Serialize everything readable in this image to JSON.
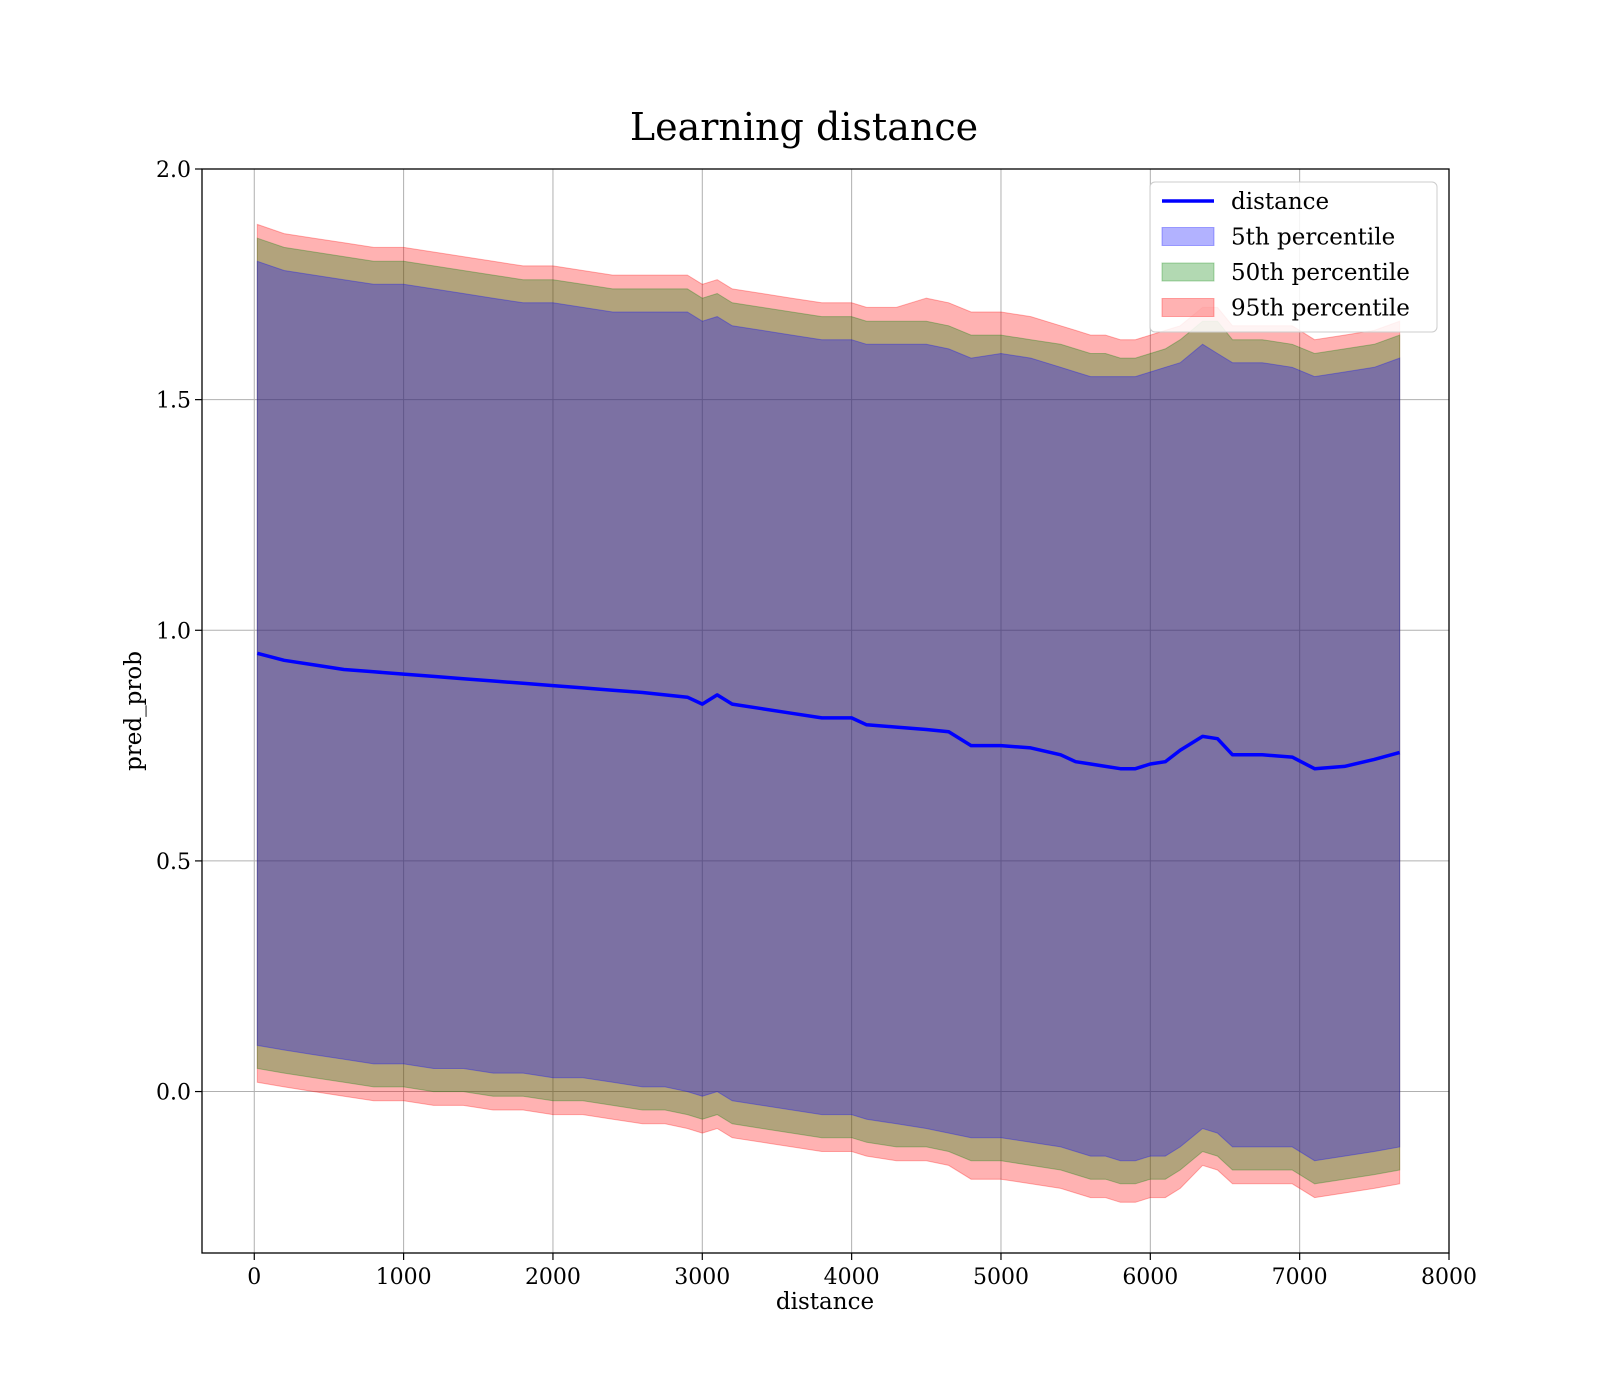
{
  "chart_data": {
    "type": "line",
    "title": "Learning distance",
    "xlabel": "distance",
    "ylabel": "pred_prob",
    "xlim": [
      -350,
      8000
    ],
    "ylim": [
      -0.35,
      2.0
    ],
    "xticks": [
      0,
      1000,
      2000,
      3000,
      4000,
      5000,
      6000,
      7000,
      8000
    ],
    "xtick_labels": [
      "0",
      "1000",
      "2000",
      "3000",
      "4000",
      "5000",
      "6000",
      "7000",
      "8000"
    ],
    "yticks": [
      0.0,
      0.5,
      1.0,
      1.5,
      2.0
    ],
    "ytick_labels": [
      "0.0",
      "0.5",
      "1.0",
      "1.5",
      "2.0"
    ],
    "grid": true,
    "legend_position": "top-right",
    "legend": [
      {
        "label": "distance",
        "kind": "line",
        "color": "#0000ff"
      },
      {
        "label": "5th percentile",
        "kind": "patch",
        "color": "#0000ff"
      },
      {
        "label": "50th percentile",
        "kind": "patch",
        "color": "#008000"
      },
      {
        "label": "95th percentile",
        "kind": "patch",
        "color": "#ff0000"
      }
    ],
    "x": [
      20,
      200,
      400,
      600,
      800,
      1000,
      1200,
      1400,
      1600,
      1800,
      2000,
      2200,
      2400,
      2600,
      2750,
      2900,
      3000,
      3100,
      3200,
      3400,
      3600,
      3800,
      4000,
      4100,
      4300,
      4500,
      4650,
      4800,
      5000,
      5200,
      5400,
      5500,
      5600,
      5700,
      5800,
      5900,
      6000,
      6100,
      6200,
      6350,
      6450,
      6550,
      6750,
      6950,
      7100,
      7300,
      7500,
      7670
    ],
    "series": [
      {
        "name": "distance",
        "color": "#0000ff",
        "values": [
          0.95,
          0.935,
          0.925,
          0.915,
          0.91,
          0.905,
          0.9,
          0.895,
          0.89,
          0.885,
          0.88,
          0.875,
          0.87,
          0.865,
          0.86,
          0.855,
          0.84,
          0.86,
          0.84,
          0.83,
          0.82,
          0.81,
          0.81,
          0.795,
          0.79,
          0.785,
          0.78,
          0.75,
          0.75,
          0.745,
          0.73,
          0.715,
          0.71,
          0.705,
          0.7,
          0.7,
          0.71,
          0.715,
          0.74,
          0.77,
          0.765,
          0.73,
          0.73,
          0.725,
          0.7,
          0.705,
          0.72,
          0.735
        ]
      }
    ],
    "bands": [
      {
        "name": "95th percentile",
        "color": "#ff0000",
        "upper": [
          1.88,
          1.86,
          1.85,
          1.84,
          1.83,
          1.83,
          1.82,
          1.81,
          1.8,
          1.79,
          1.79,
          1.78,
          1.77,
          1.77,
          1.77,
          1.77,
          1.75,
          1.76,
          1.74,
          1.73,
          1.72,
          1.71,
          1.71,
          1.7,
          1.7,
          1.72,
          1.71,
          1.69,
          1.69,
          1.68,
          1.66,
          1.65,
          1.64,
          1.64,
          1.63,
          1.63,
          1.64,
          1.65,
          1.66,
          1.7,
          1.7,
          1.66,
          1.66,
          1.66,
          1.63,
          1.64,
          1.65,
          1.67
        ],
        "lower": [
          0.02,
          0.01,
          0.0,
          -0.01,
          -0.02,
          -0.02,
          -0.03,
          -0.03,
          -0.04,
          -0.04,
          -0.05,
          -0.05,
          -0.06,
          -0.07,
          -0.07,
          -0.08,
          -0.09,
          -0.08,
          -0.1,
          -0.11,
          -0.12,
          -0.13,
          -0.13,
          -0.14,
          -0.15,
          -0.15,
          -0.16,
          -0.19,
          -0.19,
          -0.2,
          -0.21,
          -0.22,
          -0.23,
          -0.23,
          -0.24,
          -0.24,
          -0.23,
          -0.23,
          -0.21,
          -0.16,
          -0.17,
          -0.2,
          -0.2,
          -0.2,
          -0.23,
          -0.22,
          -0.21,
          -0.2
        ]
      },
      {
        "name": "50th percentile",
        "color": "#008000",
        "upper": [
          1.85,
          1.83,
          1.82,
          1.81,
          1.8,
          1.8,
          1.79,
          1.78,
          1.77,
          1.76,
          1.76,
          1.75,
          1.74,
          1.74,
          1.74,
          1.74,
          1.72,
          1.73,
          1.71,
          1.7,
          1.69,
          1.68,
          1.68,
          1.67,
          1.67,
          1.67,
          1.66,
          1.64,
          1.64,
          1.63,
          1.62,
          1.61,
          1.6,
          1.6,
          1.59,
          1.59,
          1.6,
          1.61,
          1.63,
          1.67,
          1.67,
          1.63,
          1.63,
          1.62,
          1.6,
          1.61,
          1.62,
          1.64
        ],
        "lower": [
          0.05,
          0.04,
          0.03,
          0.02,
          0.01,
          0.01,
          0.0,
          0.0,
          -0.01,
          -0.01,
          -0.02,
          -0.02,
          -0.03,
          -0.04,
          -0.04,
          -0.05,
          -0.06,
          -0.05,
          -0.07,
          -0.08,
          -0.09,
          -0.1,
          -0.1,
          -0.11,
          -0.12,
          -0.12,
          -0.13,
          -0.15,
          -0.15,
          -0.16,
          -0.17,
          -0.18,
          -0.19,
          -0.19,
          -0.2,
          -0.2,
          -0.19,
          -0.19,
          -0.17,
          -0.13,
          -0.14,
          -0.17,
          -0.17,
          -0.17,
          -0.2,
          -0.19,
          -0.18,
          -0.17
        ]
      },
      {
        "name": "5th percentile",
        "color": "#0000ff",
        "upper": [
          1.8,
          1.78,
          1.77,
          1.76,
          1.75,
          1.75,
          1.74,
          1.73,
          1.72,
          1.71,
          1.71,
          1.7,
          1.69,
          1.69,
          1.69,
          1.69,
          1.67,
          1.68,
          1.66,
          1.65,
          1.64,
          1.63,
          1.63,
          1.62,
          1.62,
          1.62,
          1.61,
          1.59,
          1.6,
          1.59,
          1.57,
          1.56,
          1.55,
          1.55,
          1.55,
          1.55,
          1.56,
          1.57,
          1.58,
          1.62,
          1.6,
          1.58,
          1.58,
          1.57,
          1.55,
          1.56,
          1.57,
          1.59
        ],
        "lower": [
          0.1,
          0.09,
          0.08,
          0.07,
          0.06,
          0.06,
          0.05,
          0.05,
          0.04,
          0.04,
          0.03,
          0.03,
          0.02,
          0.01,
          0.01,
          0.0,
          -0.01,
          0.0,
          -0.02,
          -0.03,
          -0.04,
          -0.05,
          -0.05,
          -0.06,
          -0.07,
          -0.08,
          -0.09,
          -0.1,
          -0.1,
          -0.11,
          -0.12,
          -0.13,
          -0.14,
          -0.14,
          -0.15,
          -0.15,
          -0.14,
          -0.14,
          -0.12,
          -0.08,
          -0.09,
          -0.12,
          -0.12,
          -0.12,
          -0.15,
          -0.14,
          -0.13,
          -0.12
        ]
      }
    ]
  }
}
